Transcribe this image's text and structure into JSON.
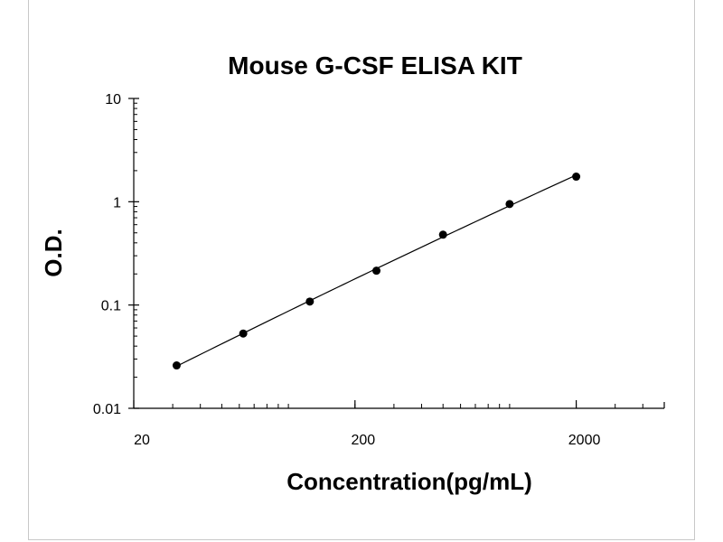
{
  "chart_data": {
    "type": "scatter",
    "title": "Mouse G-CSF ELISA KIT",
    "xlabel": "Concentration(pg/mL)",
    "ylabel": "O.D.",
    "x_scale": "log",
    "y_scale": "log",
    "xlim": [
      20,
      5000
    ],
    "ylim": [
      0.01,
      10
    ],
    "x_ticks": [
      {
        "value": 20,
        "label": "20"
      },
      {
        "value": 200,
        "label": "200"
      },
      {
        "value": 2000,
        "label": "2000"
      }
    ],
    "y_ticks": [
      {
        "value": 10,
        "label": "10"
      },
      {
        "value": 1,
        "label": "1"
      },
      {
        "value": 0.1,
        "label": "0.1"
      },
      {
        "value": 0.01,
        "label": "0.01"
      }
    ],
    "series": [
      {
        "points": [
          {
            "x": 31.25,
            "y": 0.026
          },
          {
            "x": 62.5,
            "y": 0.053
          },
          {
            "x": 125,
            "y": 0.108
          },
          {
            "x": 250,
            "y": 0.215
          },
          {
            "x": 500,
            "y": 0.48
          },
          {
            "x": 1000,
            "y": 0.95
          },
          {
            "x": 2000,
            "y": 1.75
          }
        ]
      }
    ],
    "fit_line": true,
    "grid": false,
    "colors": {
      "marker": "#000000",
      "line": "#000000",
      "frame": "#c8c8c8"
    }
  }
}
